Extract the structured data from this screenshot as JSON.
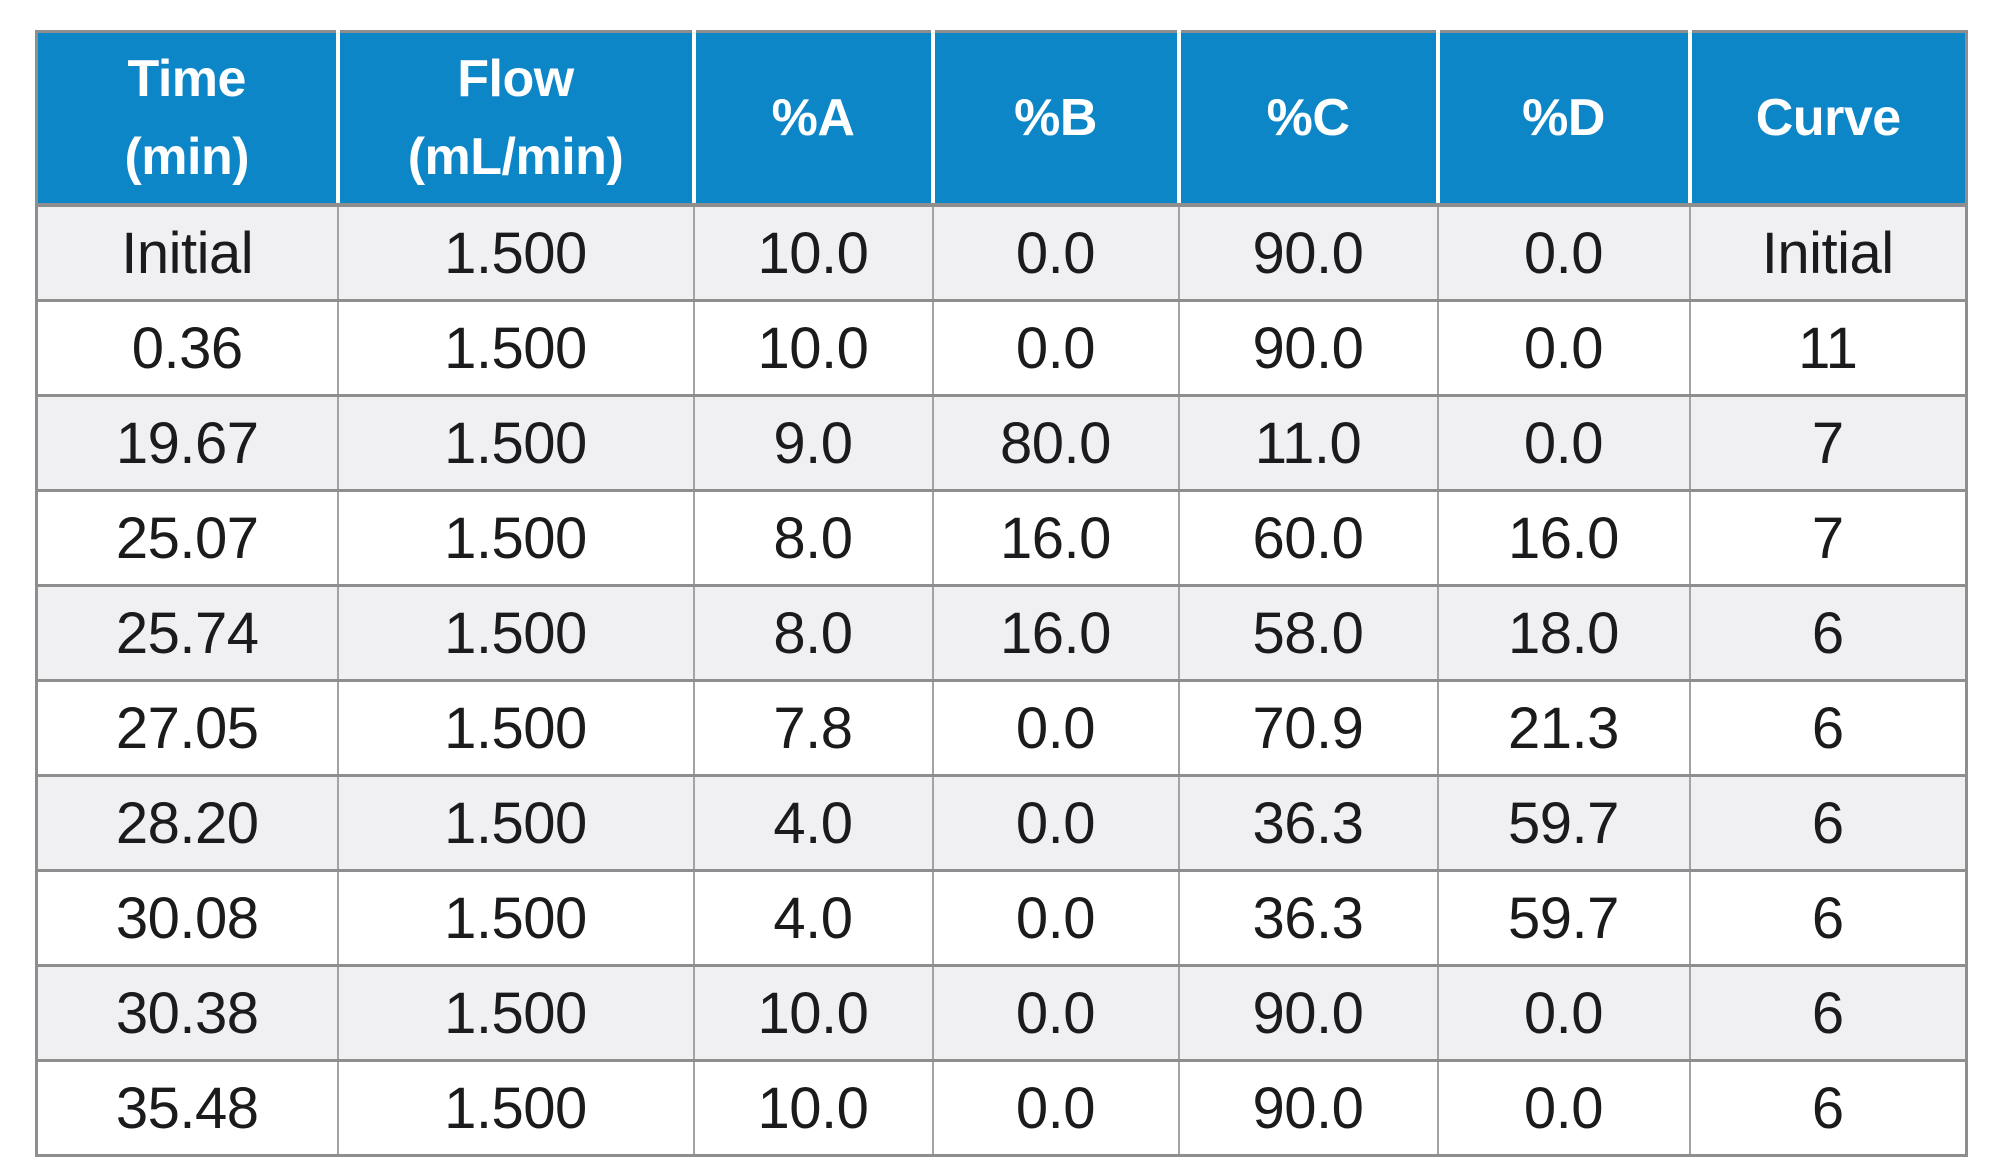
{
  "chart_data": {
    "type": "table",
    "columns": [
      "Time (min)",
      "Flow (mL/min)",
      "%A",
      "%B",
      "%C",
      "%D",
      "Curve"
    ],
    "rows": [
      [
        "Initial",
        "1.500",
        "10.0",
        "0.0",
        "90.0",
        "0.0",
        "Initial"
      ],
      [
        "0.36",
        "1.500",
        "10.0",
        "0.0",
        "90.0",
        "0.0",
        "11"
      ],
      [
        "19.67",
        "1.500",
        "9.0",
        "80.0",
        "11.0",
        "0.0",
        "7"
      ],
      [
        "25.07",
        "1.500",
        "8.0",
        "16.0",
        "60.0",
        "16.0",
        "7"
      ],
      [
        "25.74",
        "1.500",
        "8.0",
        "16.0",
        "58.0",
        "18.0",
        "6"
      ],
      [
        "27.05",
        "1.500",
        "7.8",
        "0.0",
        "70.9",
        "21.3",
        "6"
      ],
      [
        "28.20",
        "1.500",
        "4.0",
        "0.0",
        "36.3",
        "59.7",
        "6"
      ],
      [
        "30.08",
        "1.500",
        "4.0",
        "0.0",
        "36.3",
        "59.7",
        "6"
      ],
      [
        "30.38",
        "1.500",
        "10.0",
        "0.0",
        "90.0",
        "0.0",
        "6"
      ],
      [
        "35.48",
        "1.500",
        "10.0",
        "0.0",
        "90.0",
        "0.0",
        "6"
      ]
    ]
  },
  "header": {
    "cols": [
      {
        "title": "Time",
        "subtitle": "(min)"
      },
      {
        "title": "Flow",
        "subtitle": "(mL/min)"
      },
      {
        "title": "%A"
      },
      {
        "title": "%B"
      },
      {
        "title": "%C"
      },
      {
        "title": "%D"
      },
      {
        "title": "Curve"
      }
    ]
  },
  "colors": {
    "header_bg": "#0d86c8",
    "header_text": "#ffffff",
    "row_bg": "#ffffff",
    "row_alt_bg": "#f0eff1",
    "border_strong": "#8e8e8e",
    "border_light": "#a3a3a6",
    "cell_text": "#1b1b1d"
  }
}
